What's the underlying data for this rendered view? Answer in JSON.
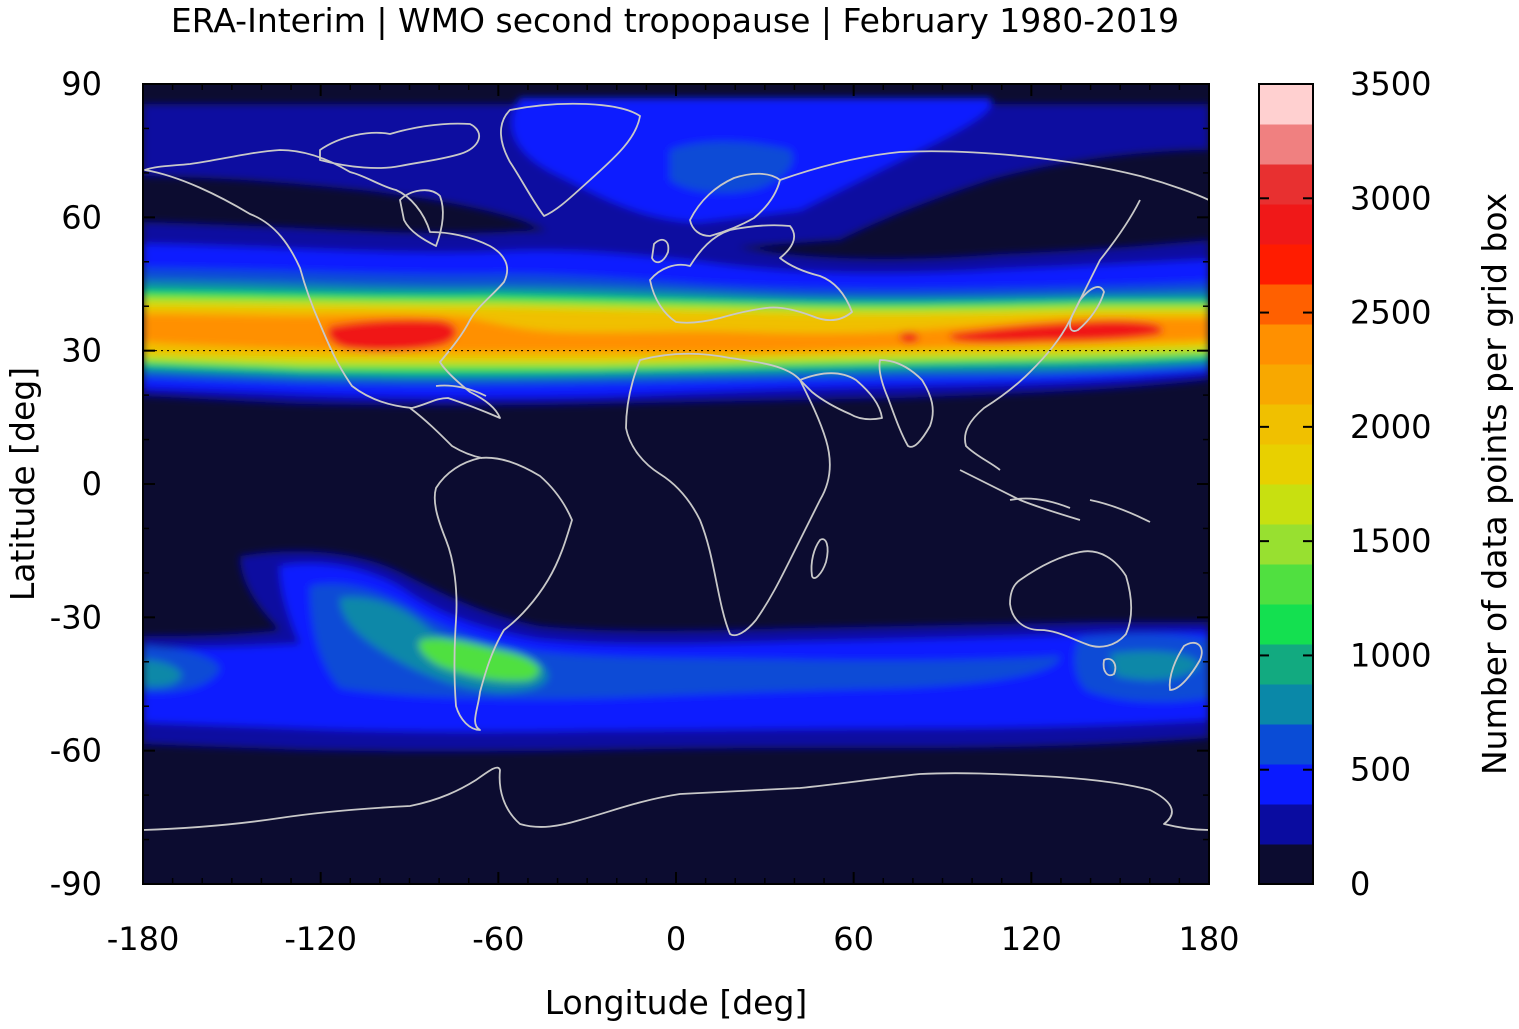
{
  "title": "ERA-Interim | WMO second tropopause | February 1980-2019",
  "map": {
    "xlabel": "Longitude [deg]",
    "ylabel": "Latitude [deg]",
    "xlim": [
      -180,
      180
    ],
    "ylim": [
      -90,
      90
    ],
    "xticks": [
      "-180",
      "-120",
      "-60",
      "0",
      "60",
      "120",
      "180"
    ],
    "yticks": [
      "90",
      "60",
      "30",
      "0",
      "-30",
      "-60",
      "-90"
    ],
    "xtick_values": [
      -180,
      -120,
      -60,
      0,
      60,
      120,
      180
    ],
    "ytick_values": [
      90,
      60,
      30,
      0,
      -30,
      -60,
      -90
    ],
    "background_color": "#0c0c30",
    "coastline_color": "#c8c8c8"
  },
  "colorbar": {
    "label": "Number of data points per grid box",
    "range": [
      0,
      3500
    ],
    "ticks": [
      "0",
      "500",
      "1000",
      "1500",
      "2000",
      "2500",
      "3000",
      "3500"
    ],
    "tick_values": [
      0,
      500,
      1000,
      1500,
      2000,
      2500,
      3000,
      3500
    ],
    "levels": [
      0,
      175,
      350,
      525,
      700,
      875,
      1050,
      1225,
      1400,
      1575,
      1750,
      1925,
      2100,
      2275,
      2450,
      2625,
      2800,
      2975,
      3150,
      3325,
      3500
    ],
    "colors": [
      "#0c0c30",
      "#0a0ca0",
      "#0a1aff",
      "#0a4cd6",
      "#0a88a8",
      "#12aa80",
      "#14e050",
      "#50e040",
      "#98e030",
      "#c8e010",
      "#e8d000",
      "#f0c000",
      "#f8a800",
      "#ff9000",
      "#ff6000",
      "#ff1c00",
      "#f01818",
      "#e83030",
      "#f08080",
      "#ffd0d0"
    ]
  }
}
